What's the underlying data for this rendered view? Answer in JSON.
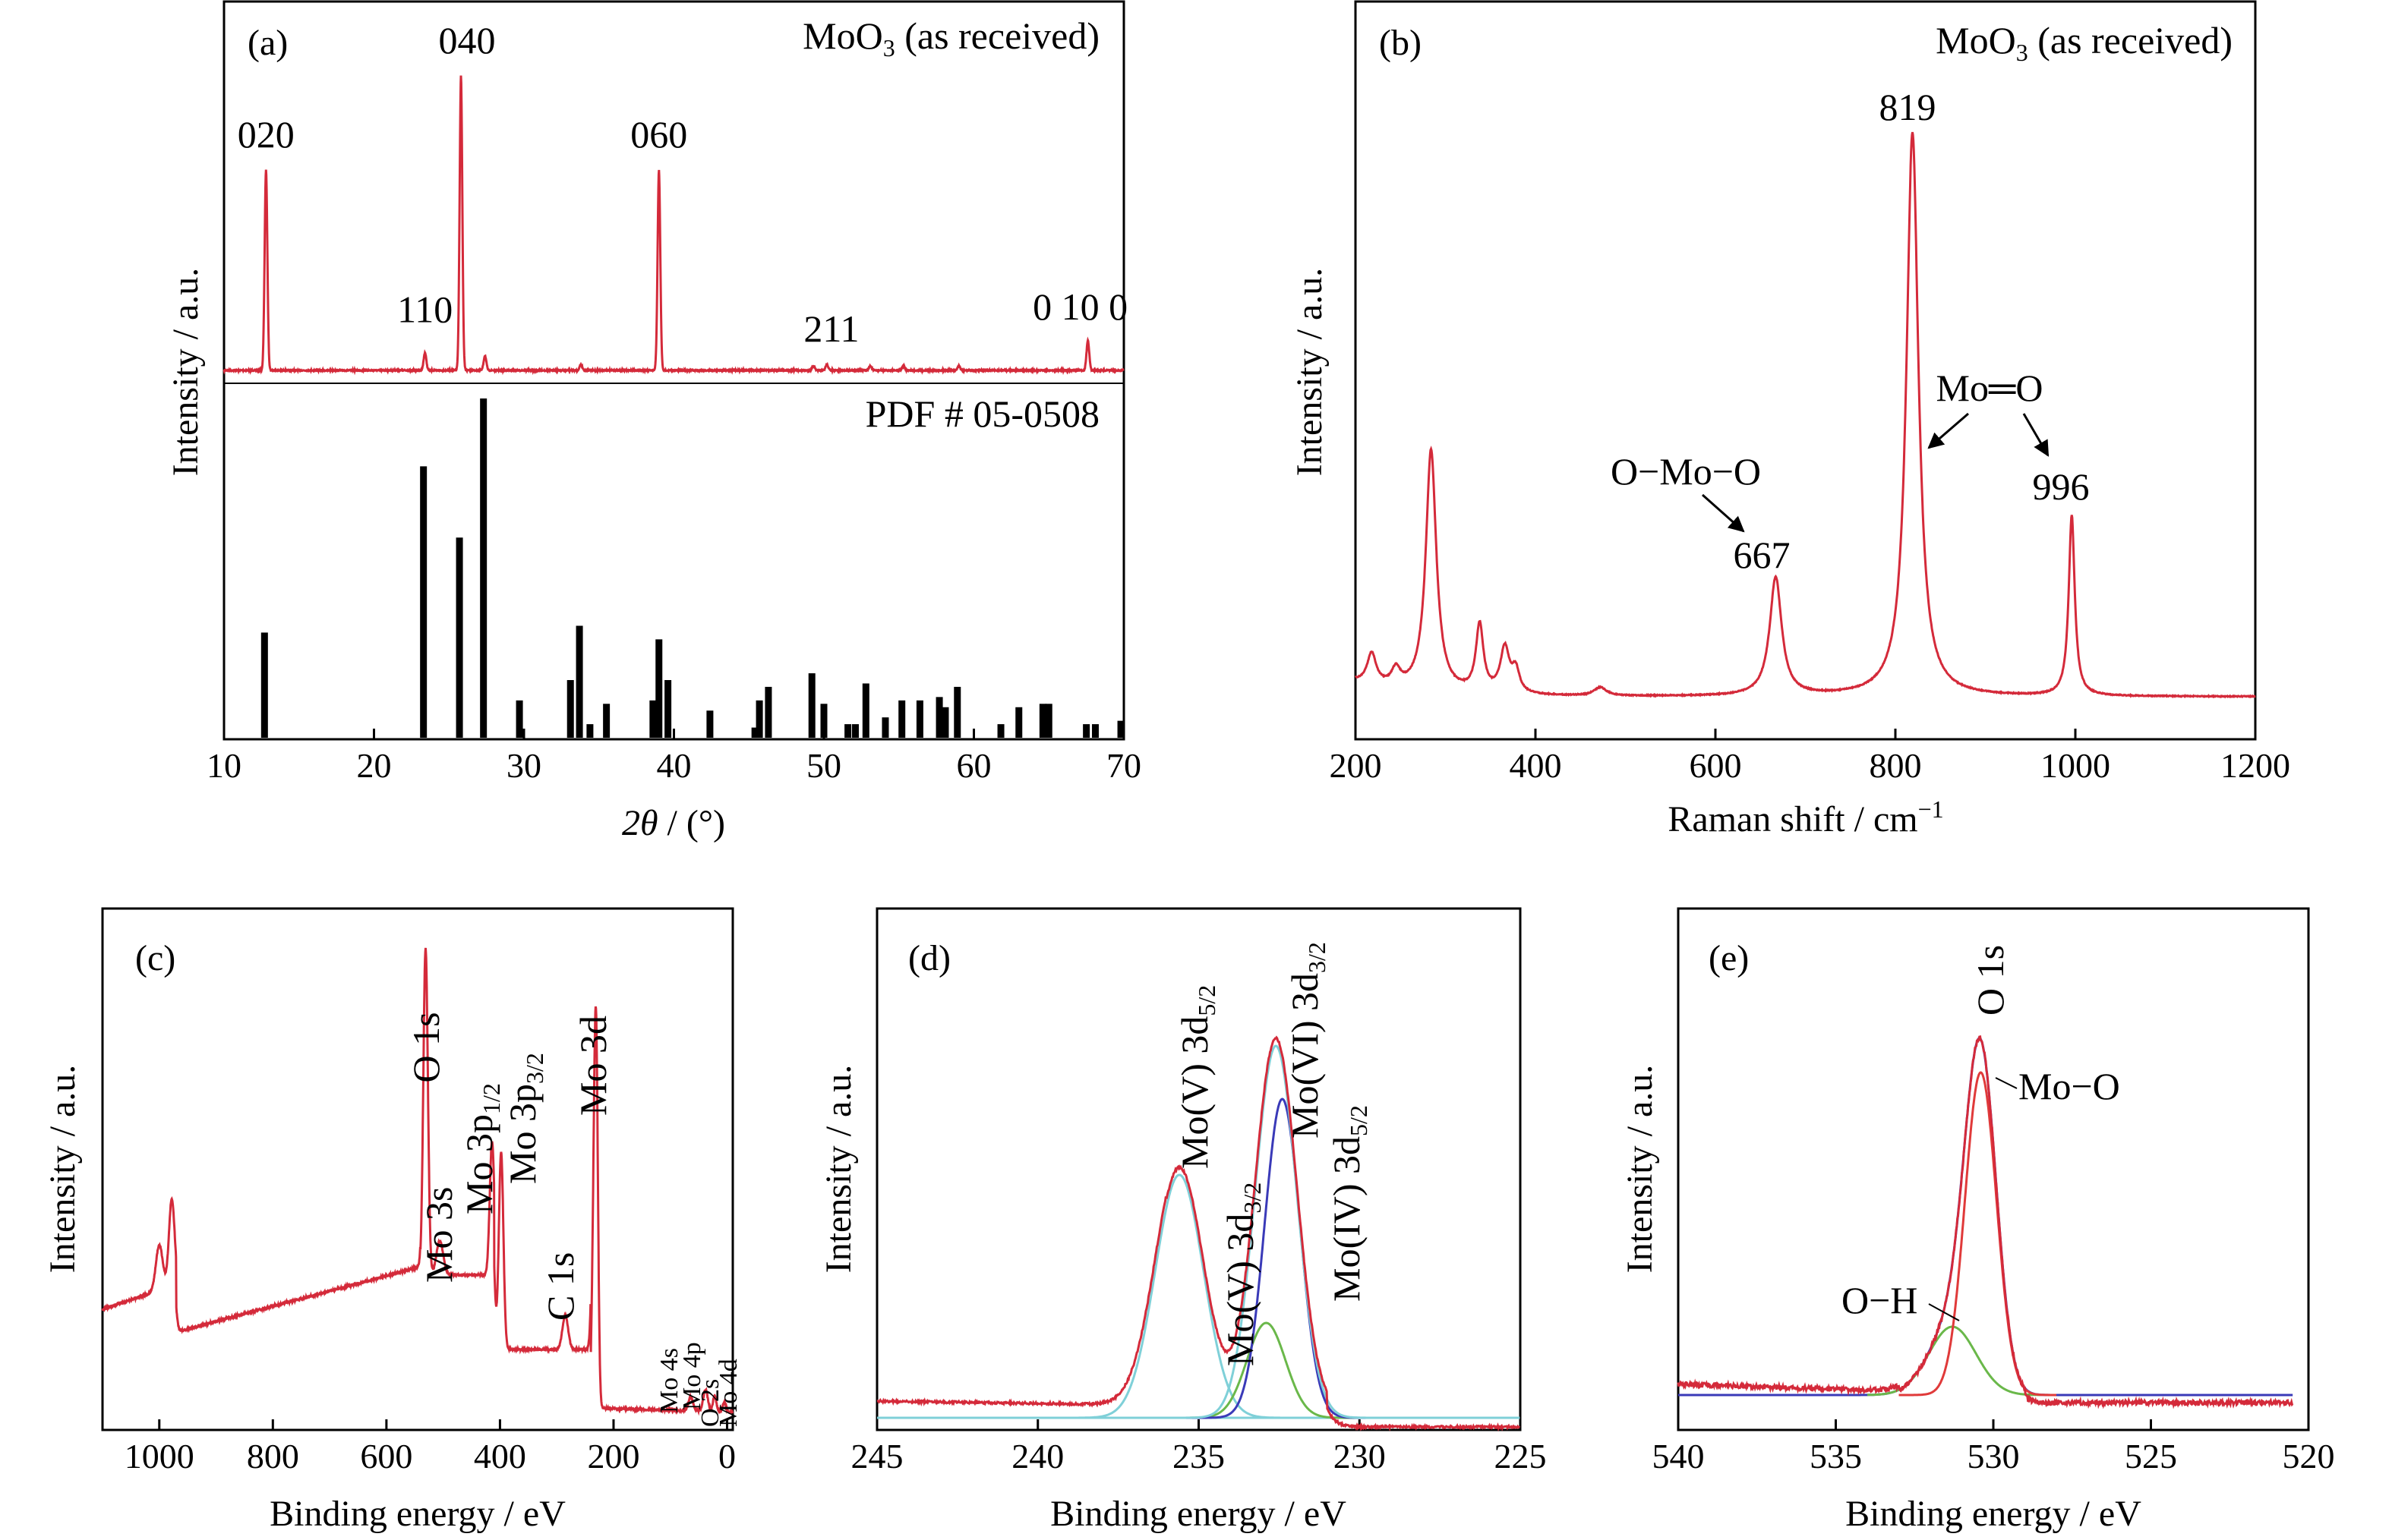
{
  "chart_data": [
    {
      "panel": "(a)",
      "type": "line",
      "xlabel": "2θ / (°)",
      "ylabel": "Intensity / a.u.",
      "xlim": [
        10,
        70
      ],
      "xticks": [
        10,
        20,
        30,
        40,
        50,
        60,
        70
      ],
      "sample_label": "MoO3 (as received)",
      "reference_label": "PDF # 05-0508",
      "measured_peaks": [
        {
          "x": 12.8,
          "h": 0.68,
          "label": "020"
        },
        {
          "x": 23.4,
          "h": 0.06,
          "label": "110"
        },
        {
          "x": 25.8,
          "h": 1.0,
          "label": "040"
        },
        {
          "x": 27.4,
          "h": 0.05,
          "label": ""
        },
        {
          "x": 33.8,
          "h": 0.02,
          "label": ""
        },
        {
          "x": 39.0,
          "h": 0.68,
          "label": "060"
        },
        {
          "x": 49.3,
          "h": 0.015,
          "label": ""
        },
        {
          "x": 50.2,
          "h": 0.02,
          "label": "211"
        },
        {
          "x": 53.1,
          "h": 0.015,
          "label": ""
        },
        {
          "x": 55.3,
          "h": 0.015,
          "label": ""
        },
        {
          "x": 59.0,
          "h": 0.015,
          "label": ""
        },
        {
          "x": 67.6,
          "h": 0.1,
          "label": "0 10 0"
        }
      ],
      "reference_bars": [
        {
          "x": 12.7,
          "h": 0.31
        },
        {
          "x": 23.3,
          "h": 0.8
        },
        {
          "x": 25.7,
          "h": 0.59
        },
        {
          "x": 27.3,
          "h": 1.0
        },
        {
          "x": 29.7,
          "h": 0.11
        },
        {
          "x": 33.1,
          "h": 0.17
        },
        {
          "x": 33.7,
          "h": 0.33
        },
        {
          "x": 34.4,
          "h": 0.04
        },
        {
          "x": 35.5,
          "h": 0.1
        },
        {
          "x": 38.6,
          "h": 0.11
        },
        {
          "x": 39.0,
          "h": 0.29
        },
        {
          "x": 39.6,
          "h": 0.17
        },
        {
          "x": 42.4,
          "h": 0.08
        },
        {
          "x": 45.4,
          "h": 0.03
        },
        {
          "x": 45.7,
          "h": 0.11
        },
        {
          "x": 46.3,
          "h": 0.15
        },
        {
          "x": 49.2,
          "h": 0.19
        },
        {
          "x": 50.0,
          "h": 0.1
        },
        {
          "x": 51.6,
          "h": 0.04
        },
        {
          "x": 52.1,
          "h": 0.04
        },
        {
          "x": 52.8,
          "h": 0.16
        },
        {
          "x": 54.1,
          "h": 0.06
        },
        {
          "x": 55.2,
          "h": 0.11
        },
        {
          "x": 56.4,
          "h": 0.11
        },
        {
          "x": 57.7,
          "h": 0.12
        },
        {
          "x": 58.1,
          "h": 0.09
        },
        {
          "x": 58.9,
          "h": 0.15
        },
        {
          "x": 61.8,
          "h": 0.04
        },
        {
          "x": 63.0,
          "h": 0.09
        },
        {
          "x": 64.6,
          "h": 0.1
        },
        {
          "x": 65.0,
          "h": 0.1
        },
        {
          "x": 67.5,
          "h": 0.04
        },
        {
          "x": 68.1,
          "h": 0.04
        },
        {
          "x": 69.8,
          "h": 0.05
        }
      ]
    },
    {
      "panel": "(b)",
      "type": "line",
      "xlabel": "Raman shift / cm⁻¹",
      "ylabel": "Intensity / a.u.",
      "xlim": [
        200,
        1200
      ],
      "xticks": [
        200,
        400,
        600,
        800,
        1000,
        1200
      ],
      "sample_label": "MoO3 (as received)",
      "peaks": [
        {
          "x": 218,
          "h": 0.055,
          "w": 6
        },
        {
          "x": 245,
          "h": 0.03,
          "w": 6
        },
        {
          "x": 284,
          "h": 0.43,
          "w": 7
        },
        {
          "x": 338,
          "h": 0.12,
          "w": 5
        },
        {
          "x": 366,
          "h": 0.08,
          "w": 6
        },
        {
          "x": 378,
          "h": 0.04,
          "w": 5
        },
        {
          "x": 472,
          "h": 0.015,
          "w": 8
        },
        {
          "x": 667,
          "h": 0.21,
          "w": 8
        },
        {
          "x": 819,
          "h": 1.0,
          "w": 8
        },
        {
          "x": 996,
          "h": 0.32,
          "w": 4
        }
      ],
      "annotations": [
        "819",
        "Mo═O",
        "996",
        "O−Mo−O",
        "667"
      ]
    },
    {
      "panel": "(c)",
      "type": "line",
      "xlabel": "Binding energy / eV",
      "ylabel": "Intensity / a.u.",
      "xlim": [
        1100,
        -10
      ],
      "xticks": [
        1000,
        800,
        600,
        400,
        200,
        0
      ],
      "annotations": [
        "O 1s",
        "Mo 3s",
        "Mo 3p1/2",
        "Mo 3p3/2",
        "C 1s",
        "Mo 3d",
        "Mo 4s",
        "Mo 4p",
        "O 2s",
        "Mo 4d"
      ]
    },
    {
      "panel": "(d)",
      "type": "line",
      "xlabel": "Binding energy / eV",
      "ylabel": "Intensity / a.u.",
      "xlim": [
        245,
        225
      ],
      "xticks": [
        245,
        240,
        235,
        230,
        225
      ],
      "components": [
        {
          "name": "Mo(V) 3d5/2",
          "center": 235.6,
          "color": "#7fd0d8"
        },
        {
          "name": "Mo(V) 3d3/2",
          "center": 232.9,
          "color": "#6ab84a"
        },
        {
          "name": "Mo(VI) 3d3/2",
          "center": 232.6,
          "color": "#7fd0d8"
        },
        {
          "name": "Mo(IV) 3d5/2",
          "center": 232.4,
          "color": "#3a3ab8"
        }
      ]
    },
    {
      "panel": "(e)",
      "type": "line",
      "xlabel": "Binding energy / eV",
      "ylabel": "Intensity / a.u.",
      "xlim": [
        540,
        520
      ],
      "xticks": [
        540,
        535,
        530,
        525,
        520
      ],
      "components": [
        {
          "name": "Mo−O",
          "center": 530.4,
          "color": "#e03a3a"
        },
        {
          "name": "O−H",
          "center": 531.3,
          "color": "#6ab84a"
        }
      ],
      "annotations": [
        "O 1s",
        "Mo−O",
        "O−H"
      ]
    }
  ],
  "text": {
    "a_panel": "(a)",
    "a_sample_main": "MoO",
    "a_sample_sub": "3",
    "a_sample_rest": " (as received)",
    "a_ref": "PDF # 05-0508",
    "a_xlabel_theta": "2θ",
    "a_xlabel_rest": " / (°)",
    "ylabel": "Intensity / a.u.",
    "b_panel": "(b)",
    "b_sample_main": "MoO",
    "b_sample_sub": "3",
    "b_sample_rest": " (as received)",
    "b_xlabel_main": "Raman shift / cm",
    "b_xlabel_sup": "−1",
    "b_819": "819",
    "b_moo": "Mo═O",
    "b_996": "996",
    "b_omoo": "O−Mo−O",
    "b_667": "667",
    "c_panel": "(c)",
    "d_panel": "(d)",
    "e_panel": "(e)",
    "be_label": "Binding energy / eV",
    "c_o1s": "O 1s",
    "c_mo3s": "Mo 3s",
    "c_mo3p12_main": "Mo 3p",
    "c_mo3p12_sub": "1/2",
    "c_mo3p32_main": "Mo 3p",
    "c_mo3p32_sub": "3/2",
    "c_c1s": "C 1s",
    "c_mo3d": "Mo 3d",
    "c_mo4s": "Mo 4s",
    "c_mo4p": "Mo 4p",
    "c_o2s": "O 2s",
    "c_mo4d": "Mo 4d",
    "d_mov52_main": "Mo(V) 3d",
    "d_mov52_sub": "5/2",
    "d_mov32_main": "Mo(V) 3d",
    "d_mov32_sub": "3/2",
    "d_movi32_main": "Mo(VI) 3d",
    "d_movi32_sub": "3/2",
    "d_moiv52_main": "Mo(IV) 3d",
    "d_moiv52_sub": "5/2",
    "e_o1s": "O 1s",
    "e_moo": "Mo−O",
    "e_oh": "O−H"
  }
}
